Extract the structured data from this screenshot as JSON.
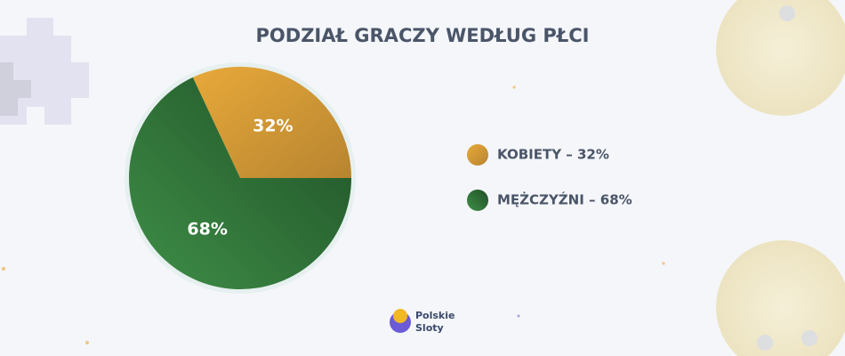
{
  "chart_data": {
    "type": "pie",
    "title": "PODZIAŁ GRACZY WEDŁUG PŁCI",
    "categories": [
      "KOBIETY – 32%",
      "MĘŻCZYŹNI – 68%"
    ],
    "values": [
      32,
      68
    ],
    "value_labels": [
      "32%",
      "68%"
    ],
    "colors": [
      "#d9a035",
      "#2f7a3a"
    ],
    "legend": "right"
  },
  "logo": {
    "line1": "Polskie",
    "line2": "Sloty"
  }
}
